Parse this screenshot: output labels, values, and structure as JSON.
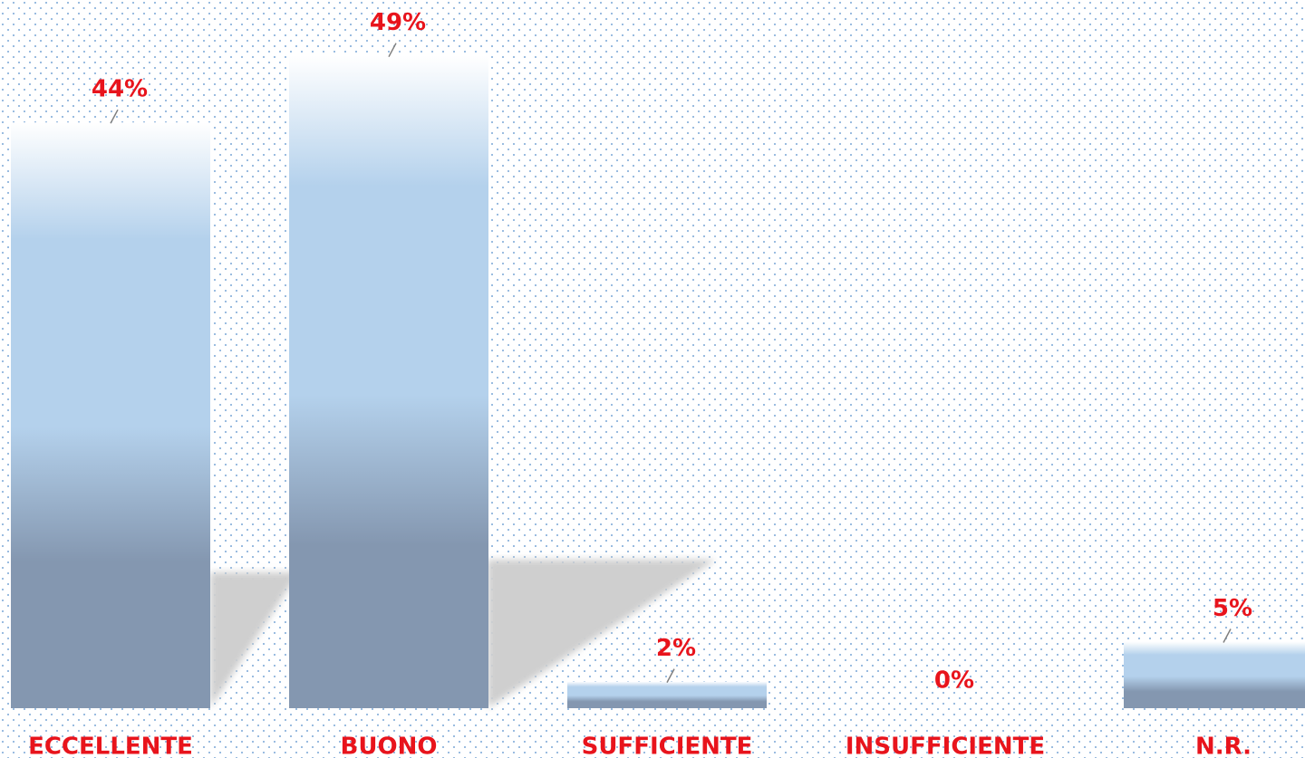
{
  "chart_data": {
    "type": "bar",
    "categories": [
      "ECCELLENTE",
      "BUONO",
      "SUFFICIENTE",
      "INSUFFICIENTE",
      "N.R."
    ],
    "values": [
      44,
      49,
      2,
      0,
      5
    ],
    "value_labels": [
      "44%",
      "49%",
      "2%",
      "0%",
      "5%"
    ],
    "color": "#b4d1ec",
    "label_color": "#e8141c",
    "ylim": [
      0,
      50
    ]
  }
}
